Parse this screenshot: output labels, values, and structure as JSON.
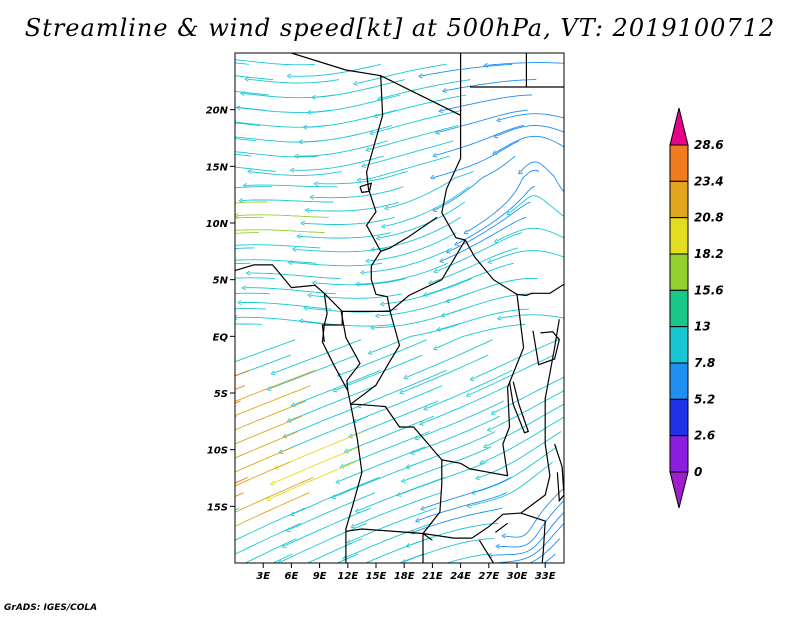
{
  "title": "Streamline & wind speed[kt] at 500hPa, VT: 2019100712",
  "credit": "GrADS: IGES/COLA",
  "map": {
    "lon_range": [
      0,
      35
    ],
    "lat_range": [
      -20,
      25
    ],
    "lat_ticks": [
      {
        "value": 20,
        "label": "20N"
      },
      {
        "value": 15,
        "label": "15N"
      },
      {
        "value": 10,
        "label": "10N"
      },
      {
        "value": 5,
        "label": "5N"
      },
      {
        "value": 0,
        "label": "EQ"
      },
      {
        "value": -5,
        "label": "5S"
      },
      {
        "value": -10,
        "label": "10S"
      },
      {
        "value": -15,
        "label": "15S"
      }
    ],
    "lon_ticks": [
      {
        "value": 3,
        "label": "3E"
      },
      {
        "value": 6,
        "label": "6E"
      },
      {
        "value": 9,
        "label": "9E"
      },
      {
        "value": 12,
        "label": "12E"
      },
      {
        "value": 15,
        "label": "15E"
      },
      {
        "value": 18,
        "label": "18E"
      },
      {
        "value": 21,
        "label": "21E"
      },
      {
        "value": 24,
        "label": "24E"
      },
      {
        "value": 27,
        "label": "27E"
      },
      {
        "value": 30,
        "label": "30E"
      },
      {
        "value": 33,
        "label": "33E"
      }
    ]
  },
  "colorbar": {
    "labels": [
      "28.6",
      "23.4",
      "20.8",
      "18.2",
      "15.6",
      "13",
      "7.8",
      "5.2",
      "2.6",
      "0"
    ],
    "colors": [
      "#e8008a",
      "#f07c1e",
      "#e2a51c",
      "#e2dd1f",
      "#96d02d",
      "#19c788",
      "#19c7d2",
      "#1f8ff0",
      "#1f32e6",
      "#8c1ee0",
      "#a01ecc"
    ]
  }
}
